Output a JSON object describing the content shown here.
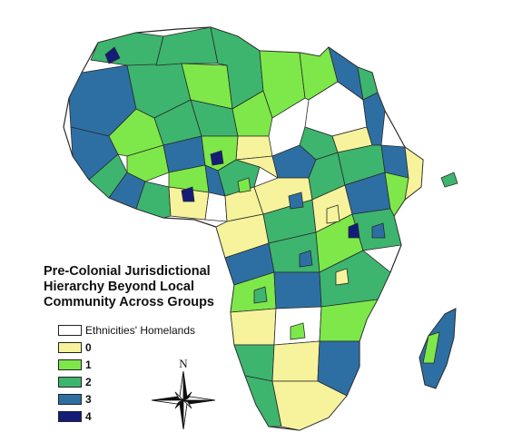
{
  "title_lines": [
    "Pre-Colonial Jurisdictional",
    "Hierarchy Beyond Local",
    "Community Across Groups"
  ],
  "legend": [
    {
      "label": "Ethnicities' Homelands",
      "color": "#ffffff"
    },
    {
      "label": "0",
      "color": "#f6f39c"
    },
    {
      "label": "1",
      "color": "#7ee84a"
    },
    {
      "label": "2",
      "color": "#3db56e"
    },
    {
      "label": "3",
      "color": "#2e6fa3"
    },
    {
      "label": "4",
      "color": "#141c78"
    }
  ],
  "compass": {
    "north_label": "N"
  },
  "colors": {
    "border": "#2a2a2a",
    "background": "#ffffff"
  }
}
